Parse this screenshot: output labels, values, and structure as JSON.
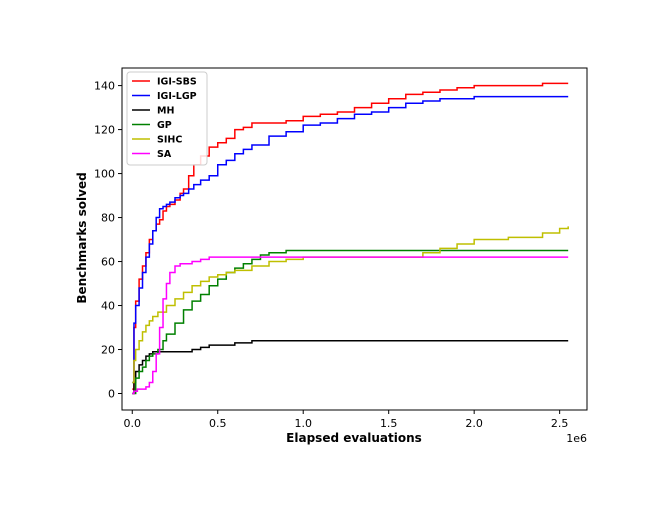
{
  "chart_data": {
    "type": "line",
    "xlabel": "Elapsed evaluations",
    "ylabel": "Benchmarks solved",
    "x_offset_label": "1e6",
    "xlim": [
      -0.06,
      2.66
    ],
    "ylim": [
      -7.5,
      148
    ],
    "x_ticks": [
      0.0,
      0.5,
      1.0,
      1.5,
      2.0,
      2.5
    ],
    "x_tick_labels": [
      "0.0",
      "0.5",
      "1.0",
      "1.5",
      "2.0",
      "2.5"
    ],
    "y_ticks": [
      0,
      20,
      40,
      60,
      80,
      100,
      120,
      140
    ],
    "y_tick_labels": [
      "0",
      "20",
      "40",
      "60",
      "80",
      "100",
      "120",
      "140"
    ],
    "legend_position": "top-left",
    "grid": false,
    "series": [
      {
        "name": "IGI-SBS",
        "color": "#ff0000",
        "x": [
          0,
          0.01,
          0.02,
          0.04,
          0.06,
          0.08,
          0.1,
          0.12,
          0.14,
          0.16,
          0.18,
          0.2,
          0.22,
          0.25,
          0.28,
          0.3,
          0.33,
          0.36,
          0.4,
          0.45,
          0.5,
          0.55,
          0.6,
          0.65,
          0.7,
          0.8,
          0.9,
          1.0,
          1.1,
          1.2,
          1.3,
          1.4,
          1.5,
          1.6,
          1.7,
          1.8,
          1.9,
          2.0,
          2.2,
          2.4,
          2.55
        ],
        "y": [
          2,
          30,
          42,
          52,
          58,
          64,
          70,
          74,
          77,
          79,
          83,
          85,
          86,
          88,
          91,
          93,
          99,
          104,
          108,
          112,
          114,
          116,
          120,
          121,
          123,
          123,
          124,
          126,
          127,
          128,
          130,
          132,
          134,
          136,
          137,
          138,
          139,
          140,
          140,
          141,
          141
        ]
      },
      {
        "name": "IGI-LGP",
        "color": "#0000ff",
        "x": [
          0,
          0.01,
          0.02,
          0.04,
          0.06,
          0.08,
          0.1,
          0.12,
          0.14,
          0.16,
          0.18,
          0.2,
          0.22,
          0.25,
          0.28,
          0.3,
          0.33,
          0.36,
          0.4,
          0.45,
          0.5,
          0.55,
          0.6,
          0.65,
          0.7,
          0.8,
          0.9,
          1.0,
          1.1,
          1.2,
          1.3,
          1.4,
          1.5,
          1.6,
          1.7,
          1.8,
          2.0,
          2.2,
          2.55
        ],
        "y": [
          5,
          32,
          40,
          48,
          55,
          62,
          68,
          74,
          80,
          84,
          85,
          86,
          87,
          89,
          90,
          91,
          93,
          95,
          97,
          99,
          104,
          106,
          109,
          111,
          113,
          117,
          119,
          122,
          123,
          125,
          127,
          128,
          130,
          132,
          133,
          134,
          135,
          135,
          135
        ]
      },
      {
        "name": "MH",
        "color": "#000000",
        "x": [
          0,
          0.01,
          0.02,
          0.04,
          0.06,
          0.08,
          0.1,
          0.12,
          0.15,
          0.2,
          0.25,
          0.3,
          0.35,
          0.4,
          0.45,
          0.5,
          0.55,
          0.6,
          0.7,
          0.8,
          1.0,
          1.5,
          2.0,
          2.55
        ],
        "y": [
          0,
          5,
          10,
          13,
          15,
          17,
          18,
          19,
          19,
          19,
          19,
          19,
          20,
          21,
          22,
          22,
          22,
          23,
          24,
          24,
          24,
          24,
          24,
          24
        ]
      },
      {
        "name": "GP",
        "color": "#008000",
        "x": [
          0,
          0.02,
          0.04,
          0.06,
          0.08,
          0.1,
          0.12,
          0.15,
          0.18,
          0.2,
          0.25,
          0.3,
          0.35,
          0.4,
          0.45,
          0.5,
          0.55,
          0.6,
          0.65,
          0.7,
          0.75,
          0.8,
          0.85,
          0.9,
          1.0,
          1.5,
          2.0,
          2.55
        ],
        "y": [
          0,
          7,
          10,
          12,
          15,
          17,
          18,
          20,
          24,
          27,
          32,
          38,
          42,
          45,
          49,
          52,
          55,
          57,
          59,
          61,
          63,
          64,
          64,
          65,
          65,
          65,
          65,
          65
        ]
      },
      {
        "name": "SIHC",
        "color": "#bfbf00",
        "x": [
          0,
          0.01,
          0.02,
          0.04,
          0.06,
          0.08,
          0.1,
          0.12,
          0.15,
          0.2,
          0.25,
          0.3,
          0.35,
          0.4,
          0.45,
          0.5,
          0.55,
          0.6,
          0.7,
          0.8,
          0.9,
          1.0,
          1.2,
          1.4,
          1.7,
          1.8,
          1.9,
          2.0,
          2.2,
          2.4,
          2.5,
          2.55
        ],
        "y": [
          5,
          15,
          20,
          24,
          28,
          31,
          33,
          35,
          37,
          40,
          43,
          46,
          49,
          51,
          53,
          54,
          55,
          56,
          58,
          60,
          61,
          62,
          62,
          62,
          64,
          66,
          68,
          70,
          71,
          73,
          75,
          76
        ]
      },
      {
        "name": "SA",
        "color": "#ff00ff",
        "x": [
          0,
          0.01,
          0.03,
          0.06,
          0.08,
          0.1,
          0.12,
          0.14,
          0.16,
          0.18,
          0.2,
          0.22,
          0.25,
          0.28,
          0.3,
          0.35,
          0.4,
          0.45,
          0.5,
          0.6,
          0.8,
          1.0,
          1.5,
          2.0,
          2.55
        ],
        "y": [
          0,
          1,
          2,
          2,
          3,
          5,
          10,
          18,
          30,
          43,
          50,
          55,
          58,
          59,
          59,
          60,
          61,
          62,
          62,
          62,
          62,
          62,
          62,
          62,
          62
        ]
      }
    ]
  }
}
